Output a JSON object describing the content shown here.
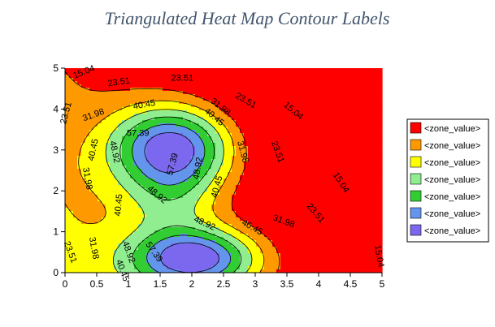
{
  "chart_data": {
    "type": "heatmap",
    "subtype": "filled-contour",
    "title": "Triangulated Heat Map Contour Labels",
    "xlabel": "",
    "ylabel": "",
    "xlim": [
      0,
      5
    ],
    "ylim": [
      0,
      5
    ],
    "x_ticks": [
      "0",
      "0.5",
      "1",
      "1.5",
      "2",
      "2.5",
      "3",
      "3.5",
      "4",
      "4.5",
      "5"
    ],
    "y_ticks": [
      "0",
      "1",
      "2",
      "3",
      "4",
      "5"
    ],
    "contour_levels": [
      15.04,
      23.51,
      31.98,
      40.45,
      48.92,
      57.39
    ],
    "zones": [
      {
        "label": "<zone_value>",
        "color": "#ff0000"
      },
      {
        "label": "<zone_value>",
        "color": "#ff9900"
      },
      {
        "label": "<zone_value>",
        "color": "#ffff00"
      },
      {
        "label": "<zone_value>",
        "color": "#90ee90"
      },
      {
        "label": "<zone_value>",
        "color": "#32cd32"
      },
      {
        "label": "<zone_value>",
        "color": "#6495ed"
      },
      {
        "label": "<zone_value>",
        "color": "#7b68ee"
      }
    ],
    "contour_labels": [
      {
        "text": "15.04",
        "x": 0.3,
        "y": 4.9,
        "angle": -22
      },
      {
        "text": "23.51",
        "x": 0.85,
        "y": 4.65,
        "angle": -8
      },
      {
        "text": "23.51",
        "x": 1.85,
        "y": 4.75,
        "angle": 0
      },
      {
        "text": "23.51",
        "x": 2.85,
        "y": 4.2,
        "angle": 30
      },
      {
        "text": "15.04",
        "x": 3.6,
        "y": 3.95,
        "angle": 40
      },
      {
        "text": "23.51",
        "x": 3.35,
        "y": 2.95,
        "angle": 70
      },
      {
        "text": "15.04",
        "x": 4.35,
        "y": 2.2,
        "angle": 58
      },
      {
        "text": "23.51",
        "x": 3.95,
        "y": 1.45,
        "angle": 50
      },
      {
        "text": "15.04",
        "x": 4.95,
        "y": 0.4,
        "angle": 80
      },
      {
        "text": "23.51",
        "x": 0.02,
        "y": 3.9,
        "angle": -75
      },
      {
        "text": "31.98",
        "x": 0.45,
        "y": 3.85,
        "angle": -20
      },
      {
        "text": "40.45",
        "x": 1.25,
        "y": 4.1,
        "angle": -10
      },
      {
        "text": "31.98",
        "x": 2.45,
        "y": 4.05,
        "angle": 38
      },
      {
        "text": "40.45",
        "x": 2.35,
        "y": 3.8,
        "angle": 40
      },
      {
        "text": "31.98",
        "x": 2.8,
        "y": 2.95,
        "angle": 75
      },
      {
        "text": "40.45",
        "x": 2.4,
        "y": 2.1,
        "angle": -75
      },
      {
        "text": "31.98",
        "x": 3.45,
        "y": 1.25,
        "angle": 20
      },
      {
        "text": "40.45",
        "x": 2.95,
        "y": 1.1,
        "angle": 30
      },
      {
        "text": "40.45",
        "x": 0.45,
        "y": 3.0,
        "angle": -78
      },
      {
        "text": "48.92",
        "x": 0.78,
        "y": 2.95,
        "angle": 78
      },
      {
        "text": "57.39",
        "x": 1.15,
        "y": 3.4,
        "angle": 0
      },
      {
        "text": "57.39",
        "x": 1.7,
        "y": 2.65,
        "angle": -75
      },
      {
        "text": "48.92",
        "x": 2.1,
        "y": 2.55,
        "angle": -80
      },
      {
        "text": "48.92",
        "x": 1.45,
        "y": 1.9,
        "angle": 40
      },
      {
        "text": "48.92",
        "x": 2.2,
        "y": 1.2,
        "angle": 25
      },
      {
        "text": "31.98",
        "x": 0.35,
        "y": 2.3,
        "angle": 80
      },
      {
        "text": "40.45",
        "x": 0.85,
        "y": 1.65,
        "angle": -85
      },
      {
        "text": "31.98",
        "x": 0.45,
        "y": 0.6,
        "angle": 80
      },
      {
        "text": "23.51",
        "x": 0.08,
        "y": 0.5,
        "angle": 70
      },
      {
        "text": "48.92",
        "x": 1.0,
        "y": 0.5,
        "angle": 70
      },
      {
        "text": "57.39",
        "x": 1.4,
        "y": 0.5,
        "angle": 55
      },
      {
        "text": "40.45",
        "x": 0.9,
        "y": 0.05,
        "angle": 70
      }
    ]
  }
}
